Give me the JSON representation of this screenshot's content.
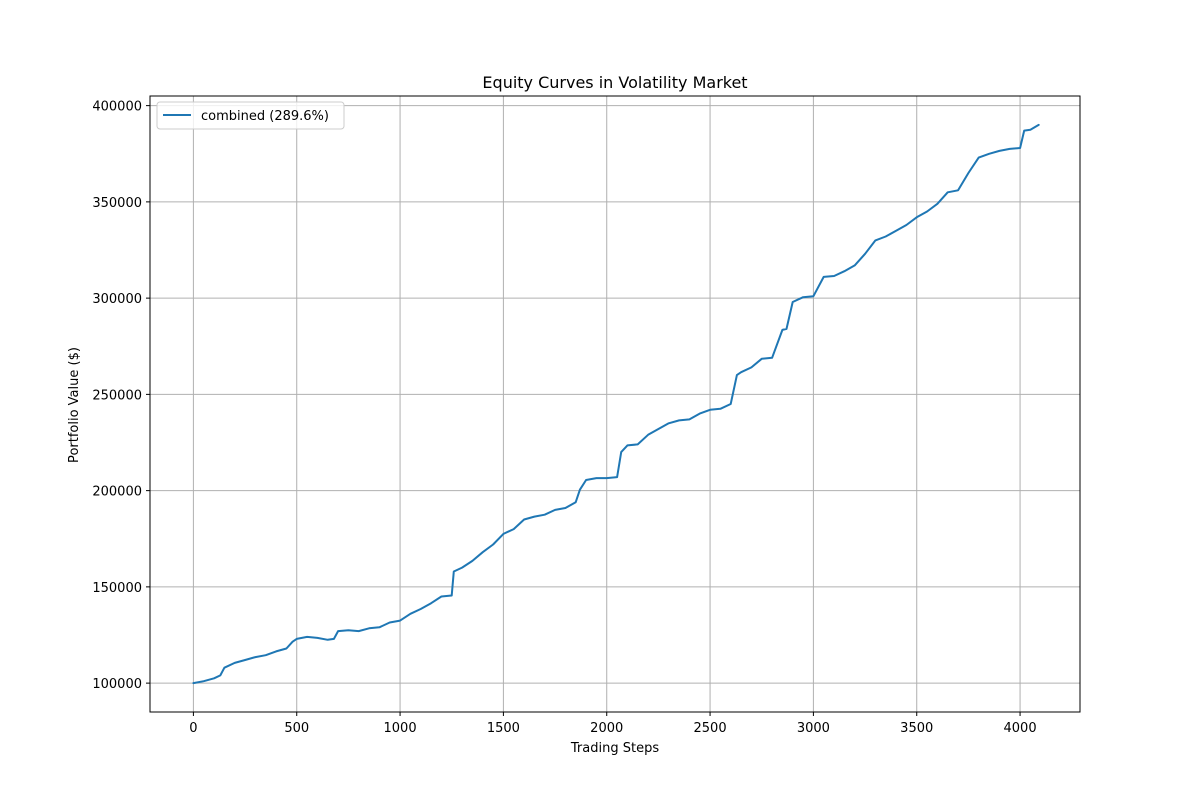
{
  "chart_data": {
    "type": "line",
    "title": "Equity Curves in Volatility Market",
    "xlabel": "Trading Steps",
    "ylabel": "Portfolio Value ($)",
    "xlim": [
      -210,
      4290
    ],
    "ylim": [
      85000,
      405000
    ],
    "x_ticks": [
      0,
      500,
      1000,
      1500,
      2000,
      2500,
      3000,
      3500,
      4000
    ],
    "x_tick_labels": [
      "0",
      "500",
      "1000",
      "1500",
      "2000",
      "2500",
      "3000",
      "3500",
      "4000"
    ],
    "y_ticks": [
      100000,
      150000,
      200000,
      250000,
      300000,
      350000,
      400000
    ],
    "y_tick_labels": [
      "100000",
      "150000",
      "200000",
      "250000",
      "300000",
      "350000",
      "400000"
    ],
    "grid": true,
    "legend_position": "top-left",
    "colors": {
      "series": "#1f77b4",
      "grid": "#b0b0b0",
      "axis": "#000000"
    },
    "series": [
      {
        "name": "combined (289.6%)",
        "x": [
          0,
          50,
          100,
          130,
          150,
          200,
          250,
          300,
          350,
          400,
          450,
          480,
          500,
          550,
          600,
          650,
          680,
          700,
          750,
          800,
          850,
          900,
          950,
          1000,
          1050,
          1100,
          1150,
          1200,
          1250,
          1260,
          1300,
          1350,
          1400,
          1450,
          1500,
          1550,
          1600,
          1650,
          1700,
          1750,
          1800,
          1850,
          1870,
          1900,
          1950,
          2000,
          2050,
          2070,
          2100,
          2150,
          2200,
          2250,
          2300,
          2350,
          2400,
          2450,
          2500,
          2550,
          2600,
          2630,
          2650,
          2700,
          2750,
          2800,
          2850,
          2870,
          2900,
          2950,
          3000,
          3050,
          3100,
          3150,
          3200,
          3250,
          3300,
          3350,
          3400,
          3450,
          3500,
          3550,
          3600,
          3650,
          3700,
          3750,
          3800,
          3850,
          3900,
          3950,
          4000,
          4020,
          4050,
          4090
        ],
        "y": [
          100000,
          101000,
          102500,
          104000,
          108000,
          110500,
          112000,
          113500,
          114500,
          116500,
          118000,
          121500,
          123000,
          124000,
          123500,
          122500,
          123000,
          127000,
          127500,
          127000,
          128500,
          129000,
          131500,
          132500,
          136000,
          138500,
          141500,
          145000,
          145500,
          158000,
          160000,
          163500,
          168000,
          172000,
          177500,
          180000,
          185000,
          186500,
          187500,
          190000,
          191000,
          194000,
          200500,
          205500,
          206500,
          206500,
          207000,
          220000,
          223500,
          224000,
          229000,
          232000,
          235000,
          236500,
          237000,
          240000,
          242000,
          242500,
          245000,
          260000,
          261500,
          264000,
          268500,
          269000,
          283500,
          284000,
          298000,
          300500,
          301000,
          311000,
          311500,
          314000,
          317000,
          323000,
          330000,
          332000,
          335000,
          338000,
          342000,
          345000,
          349000,
          355000,
          356000,
          365000,
          373000,
          375000,
          376500,
          377500,
          378000,
          387000,
          387500,
          390000
        ]
      }
    ]
  }
}
